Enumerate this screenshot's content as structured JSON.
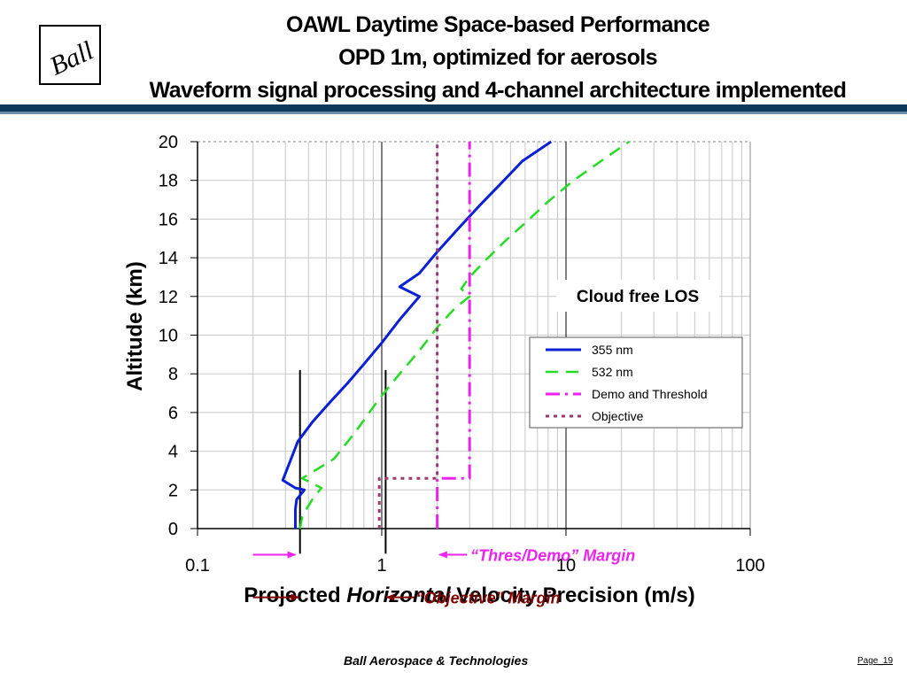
{
  "header": {
    "logo_text": "Ball",
    "title_lines": [
      "OAWL Daytime Space-based Performance",
      "OPD 1m, optimized for aerosols",
      "Waveform signal processing and 4-channel architecture implemented"
    ]
  },
  "footer": {
    "company": "Ball Aerospace & Technologies",
    "page": "Page_19"
  },
  "colors": {
    "header_rule": "#0d3a5c",
    "header_rule_light": "#6d8ea8"
  },
  "chart_data": {
    "type": "line",
    "x_scale": "log",
    "xlim": [
      0.1,
      100
    ],
    "ylim": [
      0,
      20
    ],
    "x_ticks": [
      0.1,
      1,
      10,
      100
    ],
    "x_tick_labels": [
      "0.1",
      "1",
      "10",
      "100"
    ],
    "y_ticks": [
      0,
      2,
      4,
      6,
      8,
      10,
      12,
      14,
      16,
      18,
      20
    ],
    "y_tick_labels": [
      "0",
      "2",
      "4",
      "6",
      "8",
      "10",
      "12",
      "14",
      "16",
      "18",
      "20"
    ],
    "ylabel": "Altitude (km)",
    "xlabel_parts": [
      "Projected ",
      "Horizontal",
      " Velocity Precision (m/s)"
    ],
    "grid": true,
    "legend_position": "right",
    "series": [
      {
        "name": "355 nm",
        "color": "#0a1fd6",
        "dash": "solid",
        "x": [
          0.34,
          0.34,
          0.345,
          0.38,
          0.34,
          0.29,
          0.31,
          0.35,
          0.42,
          0.52,
          0.65,
          0.8,
          1.0,
          1.25,
          1.6,
          1.25,
          1.6,
          2.0,
          2.6,
          3.4,
          4.4,
          5.8,
          8.3
        ],
        "y": [
          0,
          1,
          1.5,
          2.0,
          2.1,
          2.5,
          3.2,
          4.5,
          5.5,
          6.5,
          7.5,
          8.5,
          9.6,
          10.8,
          12.0,
          12.5,
          13.2,
          14.3,
          15.5,
          16.7,
          17.8,
          19.0,
          20
        ]
      },
      {
        "name": "532 nm",
        "color": "#22dd22",
        "dash": "long",
        "x": [
          0.36,
          0.37,
          0.39,
          0.42,
          0.47,
          0.37,
          0.55,
          0.72,
          0.95,
          1.25,
          1.6,
          2.0,
          2.5,
          3.0,
          2.7,
          3.0,
          3.6,
          4.6,
          6.0,
          8.0,
          11.0,
          15.5,
          22.0
        ],
        "y": [
          0,
          0.6,
          1.0,
          1.5,
          2.1,
          2.6,
          3.6,
          5.0,
          6.6,
          8.0,
          9.2,
          10.4,
          11.4,
          12.0,
          12.4,
          13.0,
          13.8,
          14.8,
          15.8,
          16.9,
          18.0,
          19.0,
          20
        ]
      },
      {
        "name": "Demo and Threshold",
        "color": "#ee22ee",
        "dash": "dashdot",
        "x": [
          2.0,
          2.0,
          3.0,
          3.0
        ],
        "y": [
          0,
          2.6,
          2.6,
          20
        ]
      },
      {
        "name": "Objective",
        "color": "#9b3a6e",
        "dash": "dotted",
        "x": [
          0.97,
          0.97,
          2.0,
          2.0
        ],
        "y": [
          0,
          2.6,
          2.6,
          20
        ]
      }
    ],
    "reference_lines": [
      {
        "x": 1,
        "y_from": 0,
        "y_to": 20
      },
      {
        "x": 10,
        "y_from": 0,
        "y_to": 20
      },
      {
        "x": 0.36,
        "y_from": -1.3,
        "y_to": 8.2
      },
      {
        "x": 1.05,
        "y_from": -1.3,
        "y_to": 8.2
      }
    ],
    "annotations": {
      "cloud": "Cloud free LOS",
      "thres": "“Thres/Demo” Margin",
      "objective": "“Objective” Margin"
    },
    "annotation_colors": {
      "thres": "#ee22ee",
      "objective": "#800000"
    },
    "margin_arrows": {
      "thres": {
        "y": -1.35,
        "x_tail": 0.2,
        "x_head": 0.34,
        "x_label_tail": 2.9,
        "x_label_head": 2.05
      },
      "objective": {
        "y": -3.55,
        "x_tail": 0.2,
        "x_head": 0.355,
        "x_label_tail": 1.5,
        "x_label_head": 1.06
      }
    }
  }
}
